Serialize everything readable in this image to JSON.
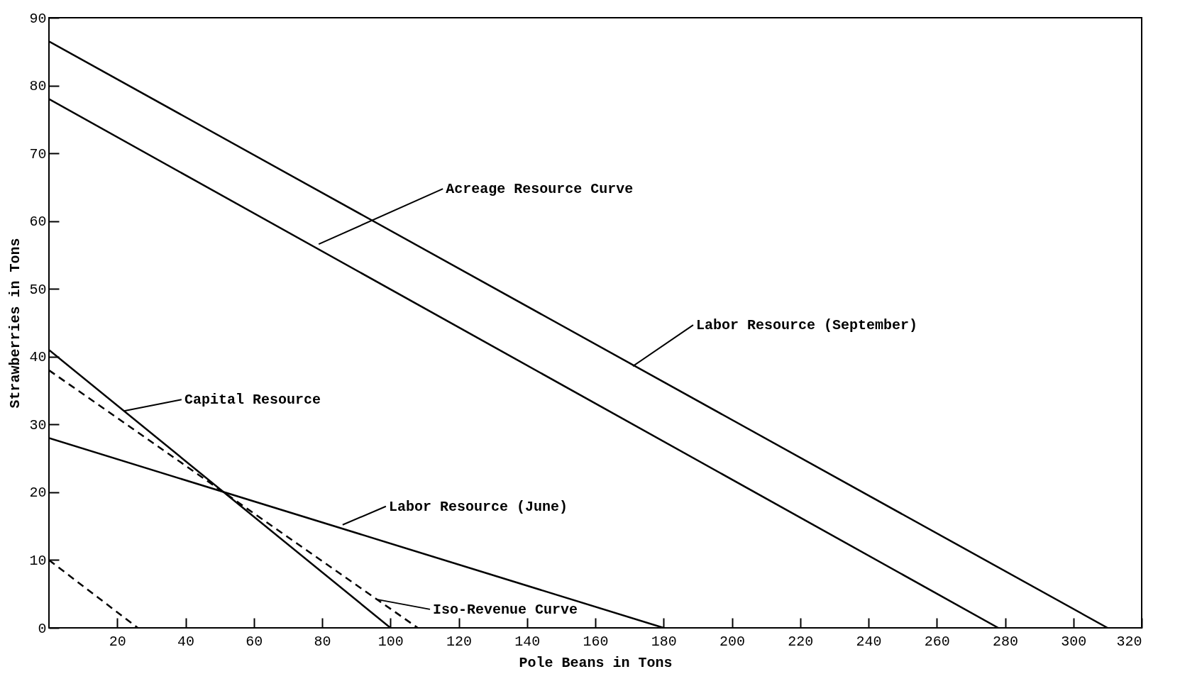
{
  "chart_data": {
    "type": "line",
    "xlabel": "Pole Beans in Tons",
    "ylabel": "Strawberries in Tons",
    "xlim": [
      0,
      320
    ],
    "ylim": [
      0,
      90
    ],
    "xticks": [
      20,
      40,
      60,
      80,
      100,
      120,
      140,
      160,
      180,
      200,
      220,
      240,
      260,
      280,
      300,
      320
    ],
    "yticks": [
      0,
      10,
      20,
      30,
      40,
      50,
      60,
      70,
      80,
      90
    ],
    "grid": false,
    "marker": "none",
    "series": [
      {
        "color": "#000000",
        "x": [
          0,
          310
        ],
        "values": [
          86.5,
          0
        ],
        "line_style": "solid"
      },
      {
        "color": "#000000",
        "x": [
          0,
          278
        ],
        "values": [
          78,
          0
        ],
        "line_style": "solid"
      },
      {
        "color": "#000000",
        "x": [
          0,
          100
        ],
        "values": [
          41,
          0
        ],
        "line_style": "solid"
      },
      {
        "color": "#000000",
        "x": [
          0,
          180
        ],
        "values": [
          28,
          0
        ],
        "line_style": "solid"
      },
      {
        "color": "#000000",
        "x": [
          0,
          108
        ],
        "values": [
          38,
          0
        ],
        "line_style": "dashed"
      },
      {
        "color": "#000000",
        "x": [
          0,
          26
        ],
        "values": [
          10,
          0
        ],
        "line_style": "dashed"
      }
    ],
    "annotations": [
      {
        "text": "Acreage Resource Curve",
        "x": 79,
        "y": 56.6
      },
      {
        "text": "Labor Resource (September)",
        "x": 171,
        "y": 38.6
      },
      {
        "text": "Capital Resource",
        "x": 22,
        "y": 32
      },
      {
        "text": "Labor Resource (June)",
        "x": 86,
        "y": 15.2
      },
      {
        "text": "Iso-Revenue Curve",
        "x": 96,
        "y": 4.2
      }
    ]
  }
}
